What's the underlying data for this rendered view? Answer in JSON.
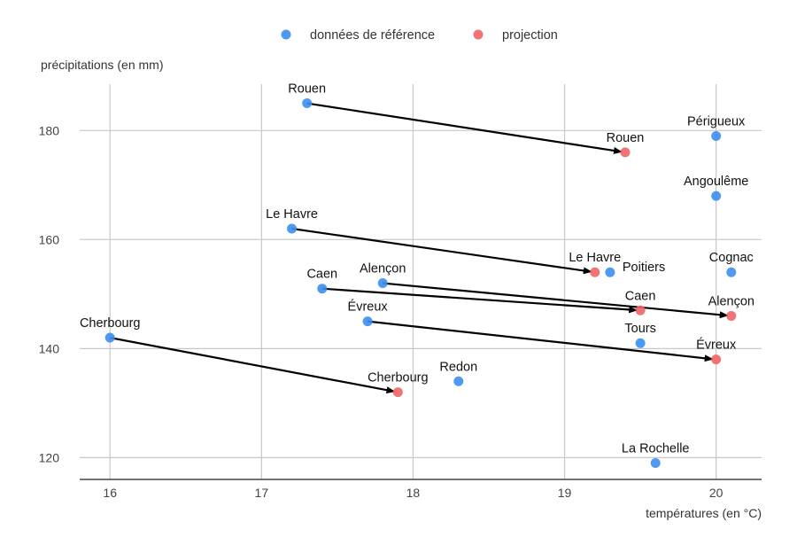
{
  "chart_data": {
    "type": "scatter",
    "xlabel": "températures (en °C)",
    "ylabel": "précipitations (en mm)",
    "xlim": [
      15.8,
      20.3
    ],
    "ylim": [
      116,
      188.5
    ],
    "xticks": [
      16,
      17,
      18,
      19,
      20
    ],
    "yticks": [
      120,
      140,
      160,
      180
    ],
    "grid": true,
    "legend_position": "top",
    "series": [
      {
        "name": "données de référence",
        "color": "#3b8ef0",
        "points": [
          {
            "label": "Rouen",
            "x": 17.3,
            "y": 185
          },
          {
            "label": "Périgueux",
            "x": 20.0,
            "y": 179
          },
          {
            "label": "Angoulême",
            "x": 20.0,
            "y": 168
          },
          {
            "label": "Le Havre",
            "x": 17.2,
            "y": 162
          },
          {
            "label": "Poitiers",
            "x": 19.3,
            "y": 154
          },
          {
            "label": "Cognac",
            "x": 20.1,
            "y": 154
          },
          {
            "label": "Alençon",
            "x": 17.8,
            "y": 152
          },
          {
            "label": "Caen",
            "x": 17.4,
            "y": 151
          },
          {
            "label": "Évreux",
            "x": 17.7,
            "y": 145
          },
          {
            "label": "Cherbourg",
            "x": 16.0,
            "y": 142
          },
          {
            "label": "Tours",
            "x": 19.5,
            "y": 141
          },
          {
            "label": "Redon",
            "x": 18.3,
            "y": 134
          },
          {
            "label": "La Rochelle",
            "x": 19.6,
            "y": 119
          }
        ]
      },
      {
        "name": "projection",
        "color": "#f06464",
        "points": [
          {
            "label": "Rouen",
            "x": 19.4,
            "y": 176
          },
          {
            "label": "Le Havre",
            "x": 19.2,
            "y": 154
          },
          {
            "label": "Caen",
            "x": 19.5,
            "y": 147
          },
          {
            "label": "Alençon",
            "x": 20.1,
            "y": 146
          },
          {
            "label": "Évreux",
            "x": 20.0,
            "y": 138
          },
          {
            "label": "Cherbourg",
            "x": 17.9,
            "y": 132
          }
        ]
      }
    ],
    "arrows": [
      {
        "from": "Rouen",
        "to": "Rouen"
      },
      {
        "from": "Le Havre",
        "to": "Le Havre"
      },
      {
        "from": "Caen",
        "to": "Caen"
      },
      {
        "from": "Alençon",
        "to": "Alençon"
      },
      {
        "from": "Évreux",
        "to": "Évreux"
      },
      {
        "from": "Cherbourg",
        "to": "Cherbourg"
      }
    ]
  }
}
